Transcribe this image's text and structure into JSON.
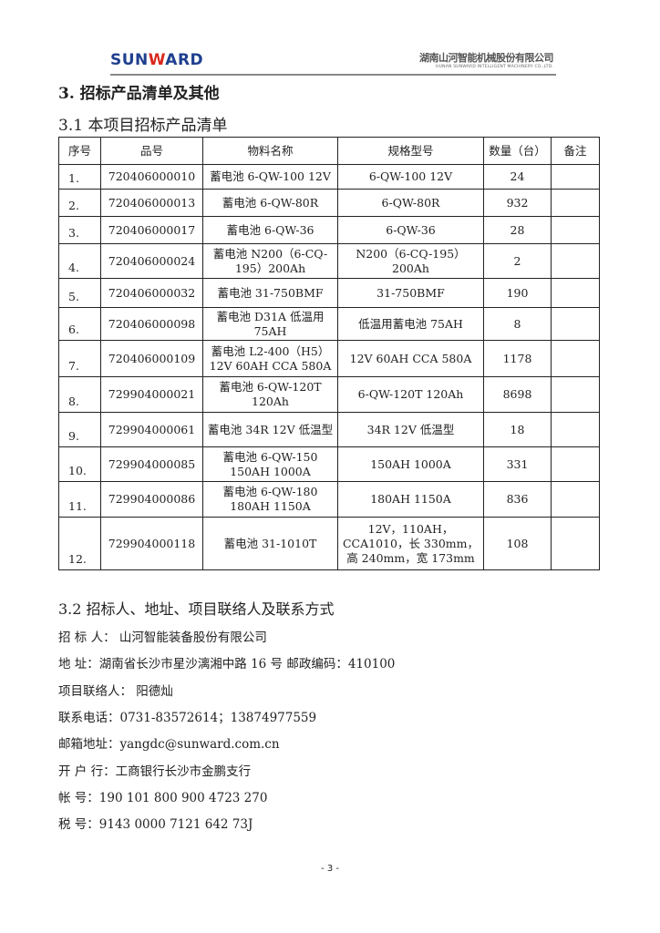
{
  "header": {
    "logo": "SUNWARD",
    "company_cn": "湖南山河智能机械股份有限公司",
    "company_en": "HUNAN SUNWARD INTELLIGENT MACHINERY CO.,LTD."
  },
  "section_title": "3.  招标产品清单及其他",
  "sub1": "3.1 本项目招标产品清单",
  "table": {
    "headers": [
      "序号",
      "品号",
      "物料名称",
      "规格型号",
      "数量（台）",
      "备注"
    ],
    "rows": [
      [
        "1.",
        "720406000010",
        "蓄电池 6-QW-100 12V",
        "6-QW-100 12V",
        "24",
        ""
      ],
      [
        "2.",
        "720406000013",
        "蓄电池 6-QW-80R",
        "6-QW-80R",
        "932",
        ""
      ],
      [
        "3.",
        "720406000017",
        "蓄电池 6-QW-36",
        "6-QW-36",
        "28",
        ""
      ],
      [
        "4.",
        "720406000024",
        "蓄电池 N200（6-CQ-195）200Ah",
        "N200（6-CQ-195）200Ah",
        "2",
        ""
      ],
      [
        "5.",
        "720406000032",
        "蓄电池 31-750BMF",
        "31-750BMF",
        "190",
        ""
      ],
      [
        "6.",
        "720406000098",
        "蓄电池 D31A 低温用 75AH",
        "低温用蓄电池 75AH",
        "8",
        ""
      ],
      [
        "7.",
        "720406000109",
        "蓄电池 L2-400（H5）12V 60AH CCA 580A",
        "12V 60AH CCA 580A",
        "1178",
        ""
      ],
      [
        "8.",
        "729904000021",
        "蓄电池 6-QW-120T 120Ah",
        "6-QW-120T 120Ah",
        "8698",
        ""
      ],
      [
        "9.",
        "729904000061",
        "蓄电池 34R 12V 低温型",
        "34R 12V 低温型",
        "18",
        ""
      ],
      [
        "10.",
        "729904000085",
        "蓄电池 6-QW-150 150AH 1000A",
        "150AH 1000A",
        "331",
        ""
      ],
      [
        "11.",
        "729904000086",
        "蓄电池 6-QW-180 180AH 1150A",
        "180AH 1150A",
        "836",
        ""
      ],
      [
        "12.",
        "729904000118",
        "蓄电池 31-1010T",
        "12V，110AH，CCA1010，长 330mm，高 240mm，宽 173mm",
        "108",
        ""
      ]
    ]
  },
  "sub2": "3.2 招标人、地址、项目联络人及联系方式",
  "contact": [
    "招  标  人：   山河智能装备股份有限公司",
    "地      址：湖南省长沙市星沙漓湘中路 16 号    邮政编码：410100",
    "项目联络人：   阳德灿",
    "联系电话：0731-83572614；13874977559",
    "邮箱地址：yangdc@sunward.com.cn",
    "开  户  行：工商银行长沙市金鹏支行",
    "帐      号：190 101 800 900 4723 270",
    "税      号：9143 0000 7121 642 73J"
  ],
  "page_number": "- 3 -"
}
